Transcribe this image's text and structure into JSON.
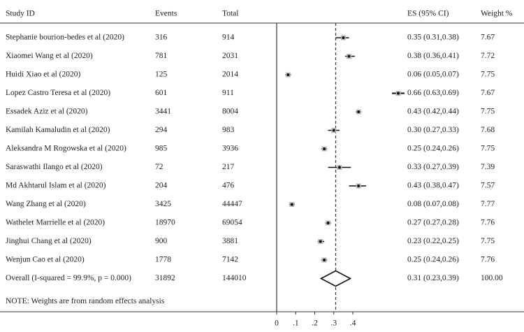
{
  "chart_data": {
    "type": "forest",
    "columns": {
      "study": "Study ID",
      "events": "Events",
      "total": "Total",
      "es": "ES (95% CI)",
      "weight": "Weight %"
    },
    "studies": [
      {
        "name": "Stephanie bourion-bedes et al (2020)",
        "events": "316",
        "total": "914",
        "es": 0.35,
        "lo": 0.31,
        "hi": 0.38,
        "es_text": "0.35 (0.31,0.38)",
        "weight": "7.67"
      },
      {
        "name": "Xiaomei Wang et al (2020)",
        "events": "781",
        "total": "2031",
        "es": 0.38,
        "lo": 0.36,
        "hi": 0.41,
        "es_text": "0.38 (0.36,0.41)",
        "weight": "7.72"
      },
      {
        "name": "Huidi Xiao et al (2020)",
        "events": "125",
        "total": "2014",
        "es": 0.06,
        "lo": 0.05,
        "hi": 0.07,
        "es_text": "0.06 (0.05,0.07)",
        "weight": "7.75"
      },
      {
        "name": "Lopez Castro Teresa et al (2020)",
        "events": "601",
        "total": "911",
        "es": 0.66,
        "lo": 0.63,
        "hi": 0.69,
        "es_text": "0.66 (0.63,0.69)",
        "weight": "7.67",
        "clipped_left": true
      },
      {
        "name": "Essadek Aziz et al (2020)",
        "events": "3441",
        "total": "8004",
        "es": 0.43,
        "lo": 0.42,
        "hi": 0.44,
        "es_text": "0.43 (0.42,0.44)",
        "weight": "7.75"
      },
      {
        "name": "Kamilah Kamaludin et al (2020)",
        "events": "294",
        "total": "983",
        "es": 0.3,
        "lo": 0.27,
        "hi": 0.33,
        "es_text": "0.30 (0.27,0.33)",
        "weight": "7.68"
      },
      {
        "name": "Aleksandra M Rogowska et al (2020)",
        "events": "985",
        "total": "3936",
        "es": 0.25,
        "lo": 0.24,
        "hi": 0.26,
        "es_text": "0.25 (0.24,0.26)",
        "weight": "7.75"
      },
      {
        "name": "Saraswathi Ilango et al (2020)",
        "events": "72",
        "total": "217",
        "es": 0.33,
        "lo": 0.27,
        "hi": 0.39,
        "es_text": "0.33 (0.27,0.39)",
        "weight": "7.39"
      },
      {
        "name": "Md Akhtarul Islam et al (2020)",
        "events": "204",
        "total": "476",
        "es": 0.43,
        "lo": 0.38,
        "hi": 0.47,
        "es_text": "0.43 (0.38,0.47)",
        "weight": "7.57"
      },
      {
        "name": "Wang Zhang et al (2020)",
        "events": "3425",
        "total": "44447",
        "es": 0.08,
        "lo": 0.07,
        "hi": 0.08,
        "es_text": "0.08 (0.07,0.08)",
        "weight": "7.77"
      },
      {
        "name": "Wathelet Marrielle et al (2020)",
        "events": "18970",
        "total": "69054",
        "es": 0.27,
        "lo": 0.27,
        "hi": 0.28,
        "es_text": "0.27 (0.27,0.28)",
        "weight": "7.76"
      },
      {
        "name": "Jinghui Chang et al (2020)",
        "events": "900",
        "total": "3881",
        "es": 0.23,
        "lo": 0.22,
        "hi": 0.25,
        "es_text": "0.23 (0.22,0.25)",
        "weight": "7.75"
      },
      {
        "name": "Wenjun Cao et al (2020)",
        "events": "1778",
        "total": "7142",
        "es": 0.25,
        "lo": 0.24,
        "hi": 0.26,
        "es_text": "0.25 (0.24,0.26)",
        "weight": "7.76"
      }
    ],
    "overall": {
      "name": "Overall (I-squared = 99.9%, p = 0.000)",
      "events": "31892",
      "total": "144010",
      "es": 0.31,
      "lo": 0.23,
      "hi": 0.39,
      "es_text": "0.31 (0.23,0.39)",
      "weight": "100.00"
    },
    "null_line": 0,
    "xlim": [
      0,
      0.4
    ],
    "xticks": [
      0,
      0.1,
      0.2,
      0.3,
      0.4
    ],
    "xtick_labels": [
      "0",
      ".1",
      ".2",
      ".3",
      ".4"
    ],
    "note": "NOTE: Weights are from random effects analysis"
  }
}
